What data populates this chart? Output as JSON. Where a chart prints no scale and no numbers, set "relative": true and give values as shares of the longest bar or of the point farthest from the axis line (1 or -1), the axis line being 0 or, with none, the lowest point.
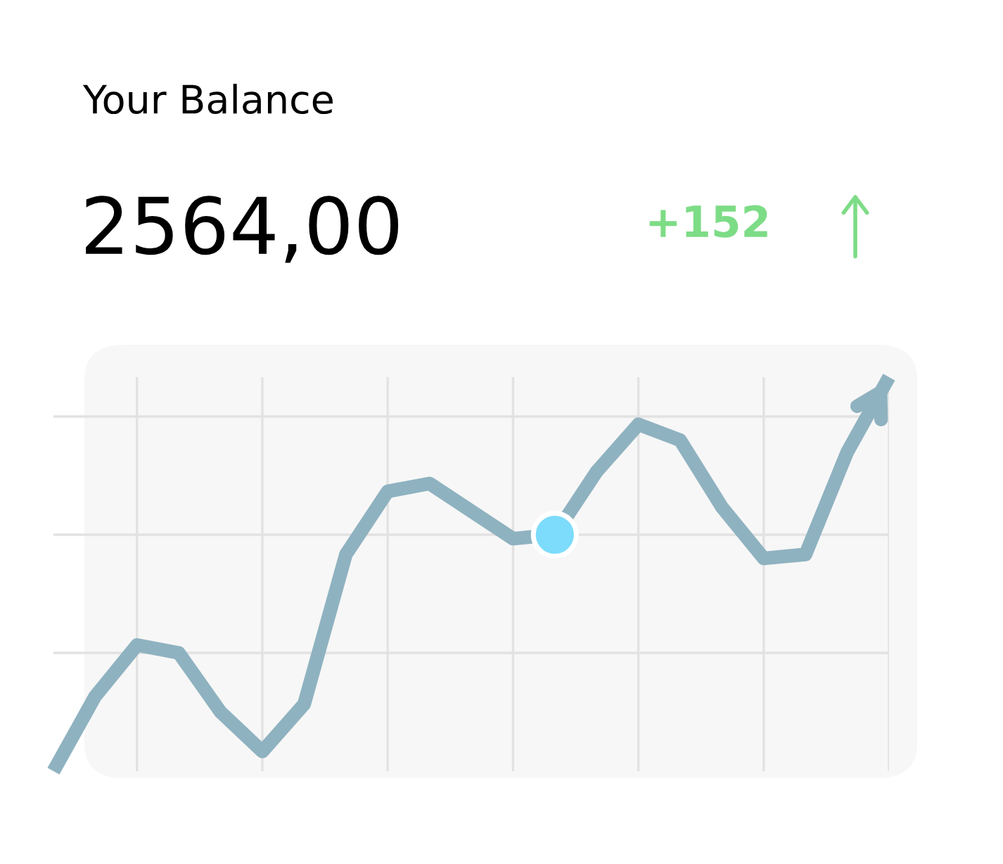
{
  "chart_data": {
    "type": "line",
    "title": "Your Balance",
    "subtitle": "2564,00",
    "annotations": [
      "+152"
    ],
    "relative": true,
    "grid": true,
    "legend": false,
    "tick_labels": false,
    "categories": [
      null,
      null,
      null,
      null,
      null,
      null,
      null,
      null,
      null,
      null,
      null,
      null,
      null,
      null,
      null,
      null,
      null,
      null,
      null,
      null,
      null
    ],
    "series": [
      {
        "color": "#8fb2c0",
        "values": [
          0,
          0.19,
          0.32,
          0.3,
          0.15,
          0.05,
          0.17,
          0.55,
          0.71,
          0.73,
          0.66,
          0.59,
          0.6,
          0.76,
          0.88,
          0.84,
          0.67,
          0.54,
          0.55,
          0.81,
          1
        ]
      }
    ]
  }
}
